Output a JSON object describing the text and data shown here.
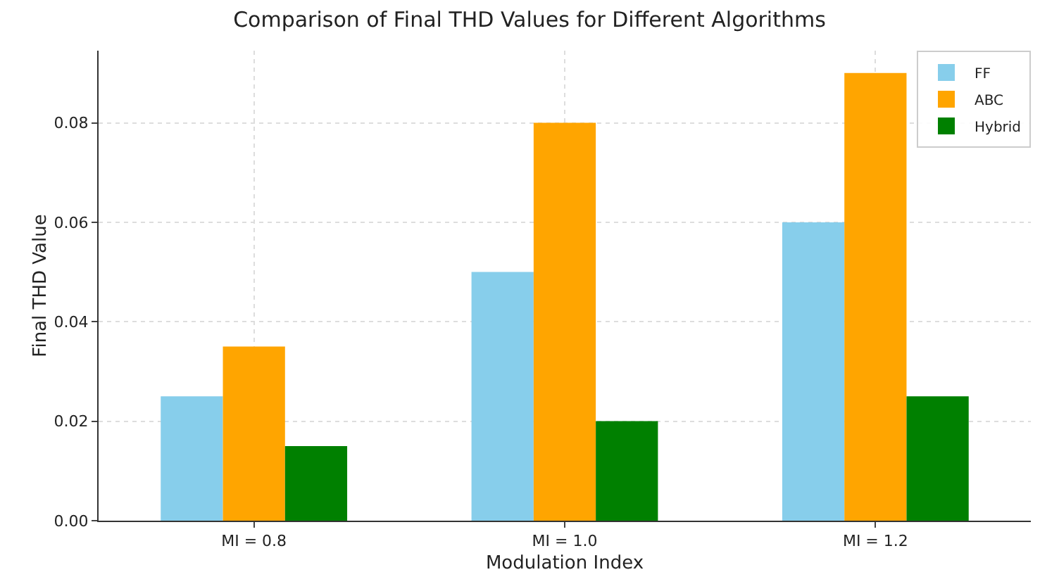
{
  "chart_data": {
    "type": "bar",
    "title": "Comparison of Final THD Values for Different Algorithms",
    "xlabel": "Modulation Index",
    "ylabel": "Final THD Value",
    "categories": [
      "MI = 0.8",
      "MI = 1.0",
      "MI = 1.2"
    ],
    "series": [
      {
        "name": "FF",
        "color": "#87ceeb",
        "values": [
          0.025,
          0.05,
          0.06
        ]
      },
      {
        "name": "ABC",
        "color": "#ffa500",
        "values": [
          0.035,
          0.08,
          0.09
        ]
      },
      {
        "name": "Hybrid",
        "color": "#008000",
        "values": [
          0.015,
          0.02,
          0.025
        ]
      }
    ],
    "ylim": [
      0,
      0.0945
    ],
    "yticks": [
      {
        "value": 0,
        "label": "0.00"
      },
      {
        "value": 0.02,
        "label": "0.02"
      },
      {
        "value": 0.04,
        "label": "0.04"
      },
      {
        "value": 0.06,
        "label": "0.06"
      },
      {
        "value": 0.08,
        "label": "0.08"
      }
    ],
    "grid": true,
    "legend": "top right"
  }
}
